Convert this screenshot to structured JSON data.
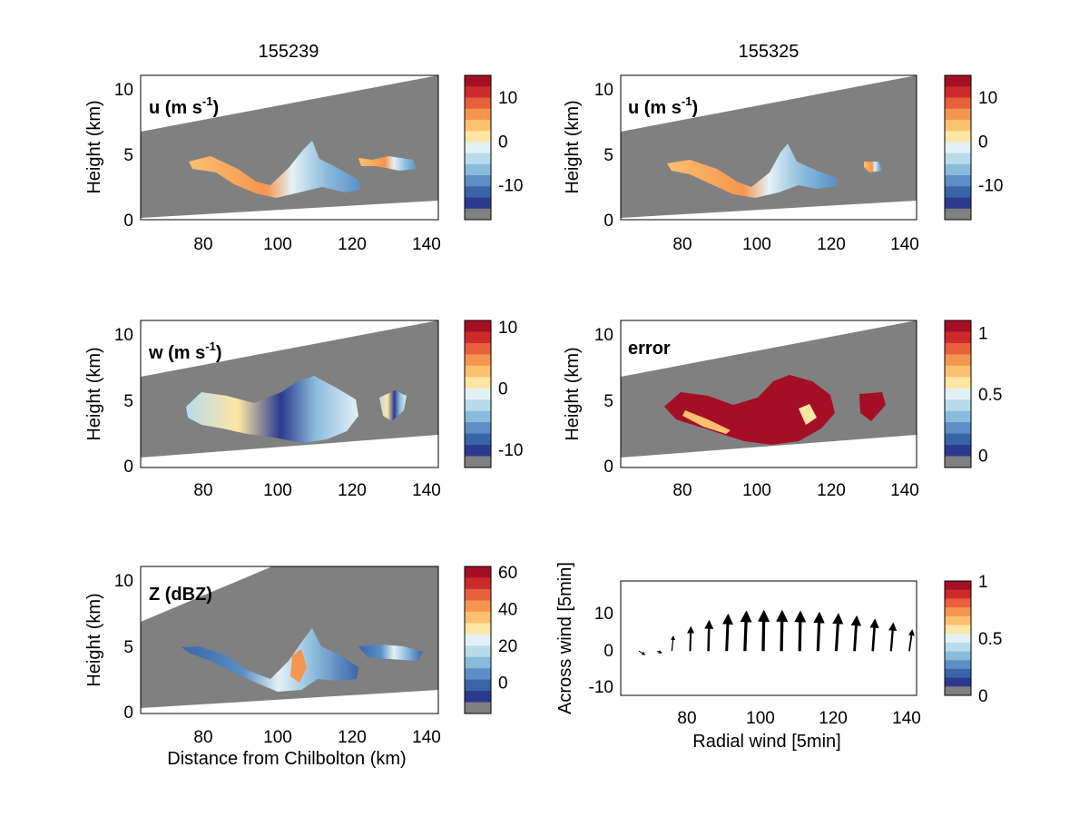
{
  "figure": {
    "column_titles": [
      "155239",
      "155325"
    ],
    "xlabel_bottom_left": "Distance from Chilbolton (km)"
  },
  "colors": {
    "no_data_gray": "#808080",
    "colormap": [
      "#2b3a8f",
      "#3a64a8",
      "#5b8fc5",
      "#8bbbdb",
      "#b9dbea",
      "#e3f1f6",
      "#fde6a4",
      "#fbc070",
      "#f6954f",
      "#e8603c",
      "#cc2a2b",
      "#a40f26"
    ]
  },
  "chart_data": [
    {
      "id": "u-155239",
      "type": "heatmap",
      "panel_label": "u (m s",
      "panel_label_sup": "-1",
      "ylabel": "Height (km)",
      "xlim": [
        63,
        143
      ],
      "ylim": [
        0,
        11
      ],
      "xticks": [
        "80",
        "100",
        "120",
        "140"
      ],
      "yticks": [
        "0",
        "5",
        "10"
      ],
      "colorbar": {
        "range": [
          -18,
          15
        ],
        "ticks": [
          "10",
          "0",
          "-10"
        ],
        "tick_values": [
          10,
          0,
          -10
        ]
      }
    },
    {
      "id": "u-155325",
      "type": "heatmap",
      "panel_label": "u (m s",
      "panel_label_sup": "-1",
      "ylabel": "Height (km)",
      "xlim": [
        63,
        143
      ],
      "ylim": [
        0,
        11
      ],
      "xticks": [
        "80",
        "100",
        "120",
        "140"
      ],
      "yticks": [
        "0",
        "5",
        "10"
      ],
      "colorbar": {
        "range": [
          -18,
          15
        ],
        "ticks": [
          "10",
          "0",
          "-10"
        ],
        "tick_values": [
          10,
          0,
          -10
        ]
      }
    },
    {
      "id": "w-155239",
      "type": "heatmap",
      "panel_label": "w (m s",
      "panel_label_sup": "-1",
      "ylabel": "Height (km)",
      "xlim": [
        63,
        143
      ],
      "ylim": [
        0,
        11
      ],
      "xticks": [
        "80",
        "100",
        "120",
        "140"
      ],
      "yticks": [
        "0",
        "5",
        "10"
      ],
      "colorbar": {
        "range": [
          -13,
          11
        ],
        "ticks": [
          "10",
          "0",
          "-10"
        ],
        "tick_values": [
          10,
          0,
          -10
        ]
      }
    },
    {
      "id": "error-155325",
      "type": "heatmap",
      "panel_label": "error",
      "ylabel": "Height (km)",
      "xlim": [
        63,
        143
      ],
      "ylim": [
        0,
        11
      ],
      "xticks": [
        "80",
        "100",
        "120",
        "140"
      ],
      "yticks": [
        "0",
        "5",
        "10"
      ],
      "colorbar": {
        "range": [
          -0.1,
          1.1
        ],
        "ticks": [
          "1",
          "0.5",
          "0"
        ],
        "tick_values": [
          1,
          0.5,
          0
        ]
      }
    },
    {
      "id": "Z-155239",
      "type": "heatmap",
      "panel_label": "Z (dBZ)",
      "ylabel": "Height (km)",
      "xlabel": "Distance from Chilbolton (km)",
      "xlim": [
        63,
        143
      ],
      "ylim": [
        0,
        11
      ],
      "xticks": [
        "80",
        "100",
        "120",
        "140"
      ],
      "yticks": [
        "0",
        "5",
        "10"
      ],
      "colorbar": {
        "range": [
          -17,
          63
        ],
        "ticks": [
          "60",
          "40",
          "20",
          "0"
        ],
        "tick_values": [
          60,
          40,
          20,
          0
        ]
      }
    },
    {
      "id": "wind-arrows",
      "type": "quiver",
      "xlabel": "Radial wind [5min]",
      "ylabel": "Across wind [5min]",
      "xlim": [
        62,
        143
      ],
      "ylim": [
        -12,
        19
      ],
      "xticks": [
        "80",
        "100",
        "120",
        "140"
      ],
      "yticks": [
        "-10",
        "0",
        "10"
      ],
      "colorbar": {
        "range": [
          0,
          1
        ],
        "ticks": [
          "1",
          "0.5",
          "0"
        ],
        "tick_values": [
          1,
          0.5,
          0
        ]
      },
      "arrows": [
        {
          "x": 67,
          "u": 0.8,
          "v": -0.6
        },
        {
          "x": 72,
          "u": 0.6,
          "v": -0.3
        },
        {
          "x": 76,
          "u": 0.2,
          "v": 2.5
        },
        {
          "x": 81,
          "u": 0.1,
          "v": 4.0
        },
        {
          "x": 86,
          "u": 0.1,
          "v": 5.0
        },
        {
          "x": 91,
          "u": 0.2,
          "v": 6.0
        },
        {
          "x": 96,
          "u": 0.2,
          "v": 6.5
        },
        {
          "x": 101,
          "u": 0.1,
          "v": 6.6
        },
        {
          "x": 106,
          "u": 0.1,
          "v": 6.6
        },
        {
          "x": 111,
          "u": 0.1,
          "v": 6.5
        },
        {
          "x": 116,
          "u": 0.2,
          "v": 6.3
        },
        {
          "x": 121,
          "u": 0.3,
          "v": 6.1
        },
        {
          "x": 126,
          "u": 0.3,
          "v": 5.7
        },
        {
          "x": 131,
          "u": 0.3,
          "v": 5.2
        },
        {
          "x": 136,
          "u": 0.3,
          "v": 4.6
        },
        {
          "x": 141,
          "u": 0.4,
          "v": 3.5
        }
      ]
    }
  ]
}
